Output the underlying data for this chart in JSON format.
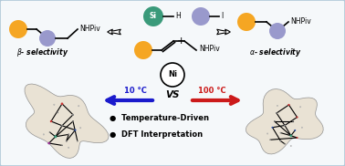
{
  "background_color": "#f5f8fa",
  "border_color": "#b0c8d8",
  "orange_color": "#F5A623",
  "lavender_color": "#9999CC",
  "teal_color": "#3a9a7a",
  "blue_color": "#1a1aCC",
  "red_color": "#CC1a1a",
  "ni_label": "Ni",
  "temp_left": "10 °C",
  "temp_right": "100 °C",
  "vs_label": "VS",
  "bullet1": "●  Temperature-Driven",
  "bullet2": "●  DFT Interpretation",
  "left_sel": "β- selectivity",
  "right_sel": "α- selectivity"
}
